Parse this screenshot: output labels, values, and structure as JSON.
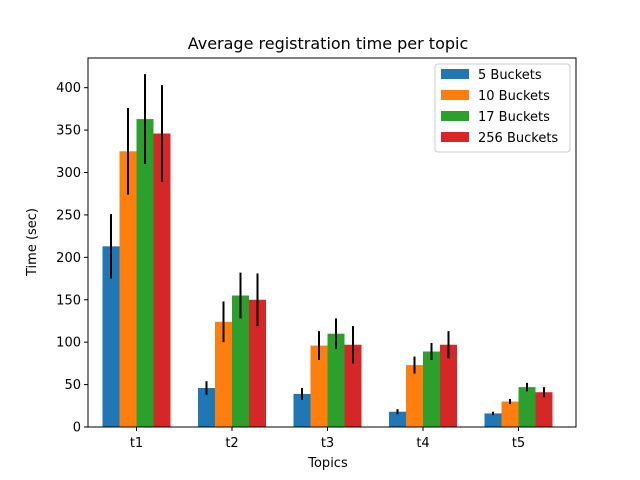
{
  "chart_data": {
    "type": "bar",
    "title": "Average registration time per topic",
    "xlabel": "Topics",
    "ylabel": "Time (sec)",
    "categories": [
      "t1",
      "t2",
      "t3",
      "t4",
      "t5"
    ],
    "ylim": [
      0,
      435
    ],
    "yticks": [
      0,
      50,
      100,
      150,
      200,
      250,
      300,
      350,
      400
    ],
    "grid": false,
    "legend_position": "top-right",
    "series": [
      {
        "name": "5 Buckets",
        "color": "#1f77b4",
        "values": [
          213,
          46,
          39,
          18,
          16
        ],
        "errors": [
          38,
          8,
          7,
          3,
          2
        ]
      },
      {
        "name": "10 Buckets",
        "color": "#ff7f0e",
        "values": [
          325,
          124,
          96,
          73,
          30
        ],
        "errors": [
          51,
          24,
          17,
          10,
          3
        ]
      },
      {
        "name": "17 Buckets",
        "color": "#2ca02c",
        "values": [
          363,
          155,
          110,
          89,
          47
        ],
        "errors": [
          53,
          27,
          18,
          10,
          5
        ]
      },
      {
        "name": "256 Buckets",
        "color": "#d62728",
        "values": [
          346,
          150,
          97,
          97,
          41
        ],
        "errors": [
          57,
          31,
          22,
          16,
          6
        ]
      }
    ]
  }
}
